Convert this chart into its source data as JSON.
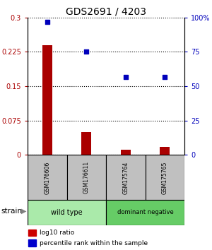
{
  "title": "GDS2691 / 4203",
  "samples": [
    "GSM176606",
    "GSM176611",
    "GSM175764",
    "GSM175765"
  ],
  "log10_ratio": [
    0.24,
    0.05,
    0.012,
    0.018
  ],
  "percentile_rank": [
    97.0,
    75.0,
    57.0,
    57.0
  ],
  "bar_color": "#aa0000",
  "dot_color": "#0000bb",
  "ylim_left": [
    0,
    0.3
  ],
  "ylim_right": [
    0,
    100
  ],
  "yticks_left": [
    0,
    0.075,
    0.15,
    0.225,
    0.3
  ],
  "ytick_labels_left": [
    "0",
    "0.075",
    "0.15",
    "0.225",
    "0.3"
  ],
  "yticks_right": [
    0,
    25,
    50,
    75,
    100
  ],
  "ytick_labels_right": [
    "0",
    "25",
    "50",
    "75",
    "100%"
  ],
  "groups": [
    {
      "label": "wild type",
      "samples": [
        0,
        1
      ],
      "color": "#aaeaaa"
    },
    {
      "label": "dominant negative",
      "samples": [
        2,
        3
      ],
      "color": "#66cc66"
    }
  ],
  "strain_label": "strain",
  "legend_items": [
    {
      "label": "log10 ratio",
      "color": "#cc0000"
    },
    {
      "label": "percentile rank within the sample",
      "color": "#0000cc"
    }
  ],
  "bg_color": "#ffffff",
  "sample_box_color": "#c0c0c0",
  "bar_width": 0.25
}
